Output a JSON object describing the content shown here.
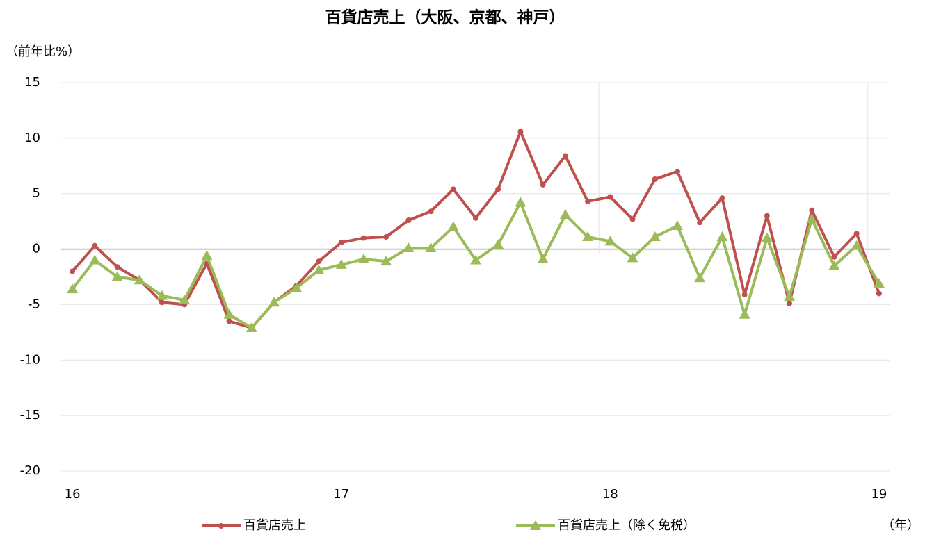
{
  "chart_data": {
    "type": "line",
    "title": "百貨店売上（大阪、京都、神戸）",
    "y_label": "（前年比%）",
    "x_label": "（年）",
    "categories": [
      "16",
      null,
      null,
      null,
      null,
      null,
      null,
      null,
      null,
      null,
      null,
      null,
      "17",
      null,
      null,
      null,
      null,
      null,
      null,
      null,
      null,
      null,
      null,
      null,
      "18",
      null,
      null,
      null,
      null,
      null,
      null,
      null,
      null,
      null,
      null,
      null,
      "19"
    ],
    "series": [
      {
        "name": "百貨店売上",
        "color": "#c0504d",
        "marker": "circle",
        "values": [
          -2.0,
          0.3,
          -1.6,
          -2.8,
          -4.8,
          -5.0,
          -1.3,
          -6.5,
          -7.1,
          -4.8,
          -3.3,
          -1.1,
          0.6,
          1.0,
          1.1,
          2.6,
          3.4,
          5.4,
          2.8,
          5.4,
          10.6,
          5.8,
          8.4,
          4.3,
          4.7,
          2.7,
          6.3,
          7.0,
          2.4,
          4.6,
          -4.1,
          3.0,
          -4.9,
          3.5,
          -0.7,
          1.4,
          -4.0
        ]
      },
      {
        "name": "百貨店売上（除く免税）",
        "color": "#9bbb59",
        "marker": "triangle",
        "values": [
          -3.6,
          -1.0,
          -2.5,
          -2.8,
          -4.2,
          -4.6,
          -0.6,
          -5.9,
          -7.1,
          -4.8,
          -3.5,
          -1.9,
          -1.4,
          -0.9,
          -1.1,
          0.1,
          0.1,
          2.0,
          -1.0,
          0.4,
          4.2,
          -0.9,
          3.1,
          1.1,
          0.7,
          -0.8,
          1.1,
          2.1,
          -2.6,
          1.1,
          -5.9,
          1.0,
          -4.3,
          2.7,
          -1.5,
          0.3,
          -3.1
        ]
      }
    ],
    "ylim": [
      -20,
      15
    ],
    "yticks": [
      -20,
      -15,
      -10,
      -5,
      0,
      5,
      10,
      15
    ],
    "grid": true
  }
}
